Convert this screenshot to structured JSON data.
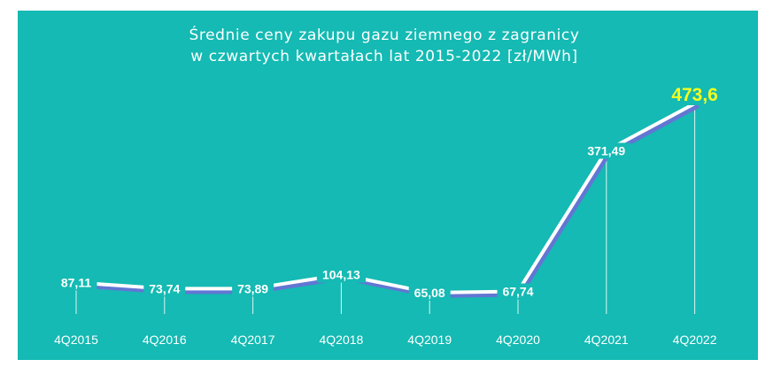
{
  "colors": {
    "background": "#14bab3",
    "line": "#ffffff",
    "shadow": "#6a6fd6",
    "drop_line": "#ffffff",
    "text": "#ffffff",
    "highlight": "#f4ff1f"
  },
  "chart_data": {
    "type": "line",
    "title_lines": [
      "Średnie ceny zakupu gazu ziemnego z zagranicy",
      "w czwartych kwartałach lat 2015-2022 [zł/MWh]"
    ],
    "xlabel": "",
    "ylabel": "",
    "categories": [
      "4Q2015",
      "4Q2016",
      "4Q2017",
      "4Q2018",
      "4Q2019",
      "4Q2020",
      "4Q2021",
      "4Q2022"
    ],
    "values": [
      87.11,
      73.74,
      73.89,
      104.13,
      65.08,
      67.74,
      371.49,
      473.6
    ],
    "labels": [
      "87,11",
      "73,74",
      "73,89",
      "104,13",
      "65,08",
      "67,74",
      "371,49",
      "473,6"
    ],
    "highlight_index": 7,
    "ylim": [
      0,
      473.6
    ],
    "grid": false,
    "legend": "none",
    "drop_lines": true
  }
}
